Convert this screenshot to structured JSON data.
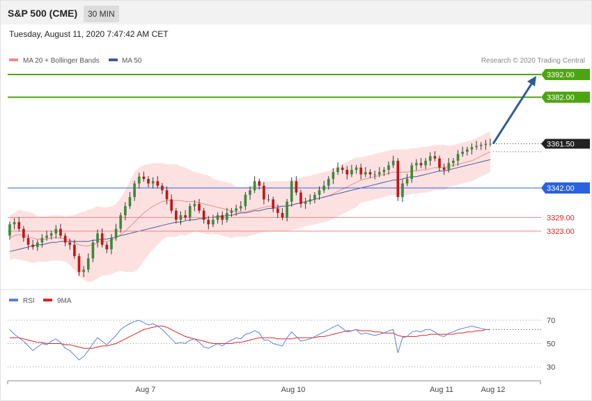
{
  "header": {
    "title": "S&P 500 (CME)",
    "interval": "30 MIN",
    "datetime": "Tuesday, August 11, 2020 7:47:42 AM CET"
  },
  "legend": {
    "ma20": "MA 20 + Bollinger Bands",
    "ma50": "MA 50",
    "copyright": "Research © 2020 Trading Central",
    "rsi": "RSI",
    "ma9": "9MA"
  },
  "colors": {
    "resistance": "#4ca50f",
    "support_blue": "#2a62e0",
    "support_red": "#f08080",
    "up_candle": "#3a8a3a",
    "down_candle": "#cc1111",
    "bollinger_fill": "#fde1e1",
    "ma20": "#f08a8a",
    "ma50": "#3b5d9c",
    "arrow": "#2f5b9a",
    "rsi": "#5b7fdb",
    "rsi_ma": "#e02020",
    "current_price_bg": "#222222"
  },
  "chart_data": [
    {
      "type": "candlestick",
      "title": "S&P 500 (CME)",
      "interval": "30 MIN",
      "ylim": [
        3300,
        3395
      ],
      "x_ticks": [
        "Aug 7",
        "Aug 10",
        "Aug 11",
        "Aug 12"
      ],
      "levels": [
        {
          "value": 3392.0,
          "label": "3392.00",
          "kind": "resistance"
        },
        {
          "value": 3382.0,
          "label": "3382.00",
          "kind": "resistance"
        },
        {
          "value": 3361.5,
          "label": "3361.50",
          "kind": "current"
        },
        {
          "value": 3342.0,
          "label": "3342.00",
          "kind": "pivot"
        },
        {
          "value": 3329.0,
          "label": "3329.00",
          "kind": "support"
        },
        {
          "value": 3323.0,
          "label": "3323.00",
          "kind": "support"
        }
      ],
      "target_arrow": {
        "from": 3361.5,
        "to": 3392.0
      },
      "close": [
        3326,
        3327,
        3324,
        3320,
        3317,
        3316,
        3318,
        3320,
        3321,
        3322,
        3324,
        3321,
        3318,
        3317,
        3312,
        3305,
        3306,
        3311,
        3318,
        3322,
        3317,
        3315,
        3320,
        3324,
        3330,
        3334,
        3338,
        3344,
        3347,
        3346,
        3344,
        3345,
        3343,
        3341,
        3337,
        3332,
        3328,
        3330,
        3329,
        3334,
        3335,
        3332,
        3328,
        3326,
        3328,
        3330,
        3328,
        3331,
        3332,
        3333,
        3334,
        3339,
        3341,
        3345,
        3343,
        3337,
        3337,
        3333,
        3331,
        3329,
        3336,
        3345,
        3340,
        3335,
        3336,
        3337,
        3339,
        3341,
        3343,
        3346,
        3349,
        3351,
        3350,
        3348,
        3350,
        3351,
        3348,
        3349,
        3348,
        3348,
        3349,
        3350,
        3352,
        3354,
        3338,
        3344,
        3346,
        3352,
        3353,
        3352,
        3354,
        3356,
        3355,
        3351,
        3350,
        3353,
        3354,
        3357,
        3358,
        3359,
        3360,
        3360.5,
        3361,
        3361.5,
        3361.5
      ],
      "open": [
        3321,
        3326,
        3327,
        3324,
        3320,
        3317,
        3316,
        3318,
        3320,
        3321,
        3322,
        3324,
        3321,
        3318,
        3317,
        3312,
        3305,
        3306,
        3311,
        3318,
        3322,
        3317,
        3315,
        3320,
        3324,
        3330,
        3334,
        3338,
        3344,
        3347,
        3346,
        3344,
        3345,
        3343,
        3341,
        3337,
        3332,
        3328,
        3330,
        3329,
        3334,
        3335,
        3332,
        3328,
        3326,
        3328,
        3330,
        3328,
        3331,
        3332,
        3333,
        3334,
        3339,
        3341,
        3345,
        3343,
        3337,
        3337,
        3333,
        3331,
        3329,
        3336,
        3345,
        3340,
        3335,
        3336,
        3337,
        3339,
        3341,
        3343,
        3346,
        3349,
        3351,
        3350,
        3348,
        3350,
        3351,
        3348,
        3349,
        3348,
        3348,
        3349,
        3350,
        3352,
        3354,
        3338,
        3344,
        3346,
        3352,
        3353,
        3352,
        3354,
        3356,
        3355,
        3351,
        3350,
        3353,
        3354,
        3357,
        3358,
        3359,
        3360,
        3360.5,
        3361,
        3361.5
      ],
      "ma20": [
        3320,
        3321,
        3321.5,
        3321,
        3320.5,
        3320,
        3319.5,
        3319.5,
        3319.5,
        3320,
        3320,
        3320,
        3319.5,
        3319,
        3318,
        3317,
        3316.5,
        3316.5,
        3317,
        3318,
        3318.5,
        3318.5,
        3319,
        3320,
        3321.5,
        3323,
        3325,
        3327,
        3329,
        3331,
        3332.5,
        3334,
        3335,
        3336,
        3336.5,
        3336.5,
        3336.5,
        3336.5,
        3336,
        3336,
        3336,
        3335.5,
        3335,
        3334.5,
        3334,
        3333.5,
        3333,
        3332.5,
        3332,
        3331.5,
        3331.5,
        3331.5,
        3332,
        3332.5,
        3333,
        3333.5,
        3334,
        3334,
        3334,
        3334,
        3334,
        3334.5,
        3335,
        3335.5,
        3336,
        3336.5,
        3337,
        3337.5,
        3338,
        3338.5,
        3339.5,
        3340.5,
        3341.5,
        3342.5,
        3343.5,
        3344.5,
        3345.5,
        3346,
        3346.5,
        3347,
        3347.5,
        3348,
        3348.5,
        3349,
        3349,
        3349,
        3349,
        3349.5,
        3349.5,
        3350,
        3350,
        3350.5,
        3351,
        3351,
        3351,
        3351.5,
        3352,
        3352.5,
        3353,
        3353.5,
        3354,
        3355,
        3356,
        3357,
        3358
      ],
      "ma50": [
        3314,
        3314.5,
        3315,
        3315.5,
        3316,
        3316.5,
        3317,
        3317,
        3317.5,
        3318,
        3318,
        3318.5,
        3318.5,
        3318.5,
        3318.5,
        3318.5,
        3318.5,
        3318.5,
        3319,
        3319,
        3319.5,
        3319.5,
        3320,
        3320.5,
        3321,
        3321.5,
        3322,
        3322.5,
        3323,
        3323.5,
        3324,
        3324.5,
        3325,
        3325.5,
        3326,
        3326.5,
        3327,
        3327,
        3327.5,
        3328,
        3328,
        3328.5,
        3328.5,
        3329,
        3329,
        3329.5,
        3329.5,
        3330,
        3330,
        3330.5,
        3331,
        3331,
        3331.5,
        3332,
        3332,
        3332.5,
        3333,
        3333,
        3333.5,
        3334,
        3334,
        3334.5,
        3335,
        3335.5,
        3336,
        3336.5,
        3337,
        3337.5,
        3338,
        3338.5,
        3339,
        3339.5,
        3340,
        3340.5,
        3341,
        3341.5,
        3342,
        3342.5,
        3343,
        3343.5,
        3344,
        3344.5,
        3345,
        3345.5,
        3345.5,
        3346,
        3346.5,
        3347,
        3347,
        3347.5,
        3348,
        3348.5,
        3349,
        3349.5,
        3349.5,
        3350,
        3350.5,
        3351,
        3351.5,
        3352,
        3352.5,
        3353,
        3353.5,
        3354,
        3354.5
      ],
      "bollinger_width": [
        10,
        10,
        11,
        11,
        11,
        11,
        10,
        10,
        10,
        10,
        10,
        10,
        10,
        11,
        12,
        14,
        15,
        16,
        16,
        16,
        15,
        15,
        15,
        15,
        16,
        18,
        20,
        22,
        22,
        21,
        20,
        19,
        18,
        17,
        16,
        16,
        16,
        15,
        15,
        14,
        13,
        13,
        13,
        13,
        12,
        12,
        12,
        12,
        12,
        11,
        11,
        11,
        11,
        11,
        11,
        11,
        11,
        11,
        11,
        11,
        11,
        11,
        11,
        11,
        11,
        11,
        11,
        11,
        11,
        11,
        11,
        11,
        11,
        11,
        11,
        11,
        10,
        10,
        10,
        10,
        10,
        10,
        10,
        10,
        10,
        10,
        10,
        10,
        10,
        10,
        10,
        10,
        10,
        10,
        10,
        9,
        9,
        9,
        9,
        9,
        9,
        9,
        9,
        9,
        9
      ]
    },
    {
      "type": "line",
      "title": "RSI",
      "ylim": [
        20,
        80
      ],
      "y_ticks": [
        70,
        50,
        30
      ],
      "series": [
        {
          "name": "RSI",
          "values": [
            62,
            58,
            55,
            52,
            48,
            44,
            47,
            50,
            49,
            52,
            54,
            51,
            46,
            44,
            40,
            36,
            39,
            44,
            50,
            55,
            52,
            49,
            53,
            57,
            62,
            65,
            67,
            69,
            70,
            68,
            66,
            67,
            65,
            62,
            58,
            54,
            50,
            51,
            50,
            53,
            54,
            51,
            47,
            46,
            48,
            50,
            48,
            51,
            53,
            55,
            54,
            58,
            59,
            61,
            59,
            53,
            53,
            50,
            49,
            48,
            55,
            60,
            56,
            52,
            53,
            54,
            56,
            58,
            60,
            62,
            64,
            66,
            63,
            60,
            61,
            62,
            58,
            59,
            58,
            57,
            58,
            59,
            61,
            62,
            42,
            55,
            56,
            60,
            61,
            60,
            62,
            62,
            60,
            57,
            56,
            59,
            60,
            62,
            63,
            64,
            65,
            64,
            63,
            62,
            62
          ]
        },
        {
          "name": "9MA",
          "values": [
            55,
            55,
            55,
            54,
            53,
            52,
            51,
            51,
            50,
            50,
            50,
            50,
            49,
            49,
            48,
            47,
            46,
            46,
            46,
            47,
            48,
            48,
            49,
            50,
            52,
            54,
            56,
            58,
            60,
            62,
            63,
            64,
            65,
            65,
            64,
            62,
            60,
            58,
            56,
            55,
            54,
            53,
            52,
            51,
            50,
            50,
            50,
            50,
            50,
            51,
            51,
            52,
            53,
            54,
            55,
            55,
            55,
            55,
            54,
            54,
            54,
            54,
            55,
            55,
            55,
            55,
            55,
            56,
            56,
            57,
            58,
            59,
            60,
            61,
            61,
            62,
            61,
            61,
            61,
            60,
            60,
            59,
            59,
            59,
            57,
            56,
            56,
            56,
            56,
            57,
            57,
            58,
            58,
            58,
            58,
            58,
            58,
            59,
            59,
            60,
            60,
            61,
            61,
            62,
            62
          ]
        }
      ]
    }
  ]
}
